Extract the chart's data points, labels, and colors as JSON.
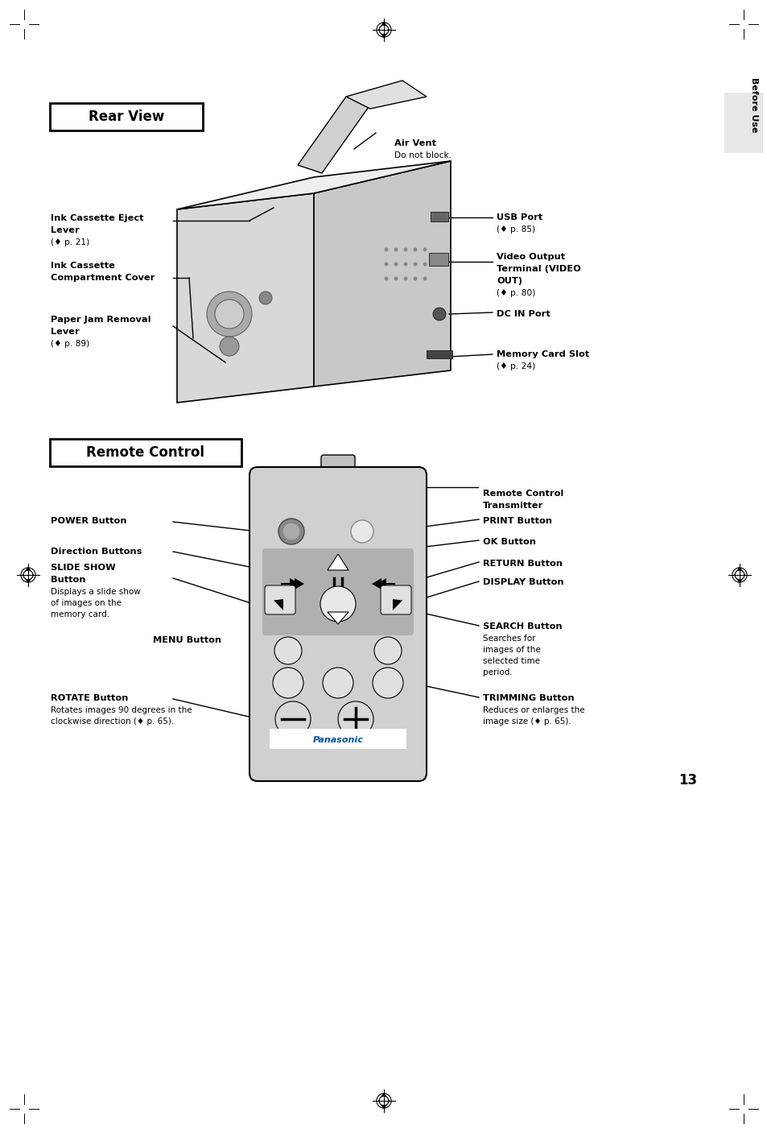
{
  "page_bg": "#ffffff",
  "page_width": 9.54,
  "page_height": 14.07,
  "title_rear_view": "Rear View",
  "title_remote_control": "Remote Control",
  "side_tab_text": "Before Use",
  "page_number": "13"
}
